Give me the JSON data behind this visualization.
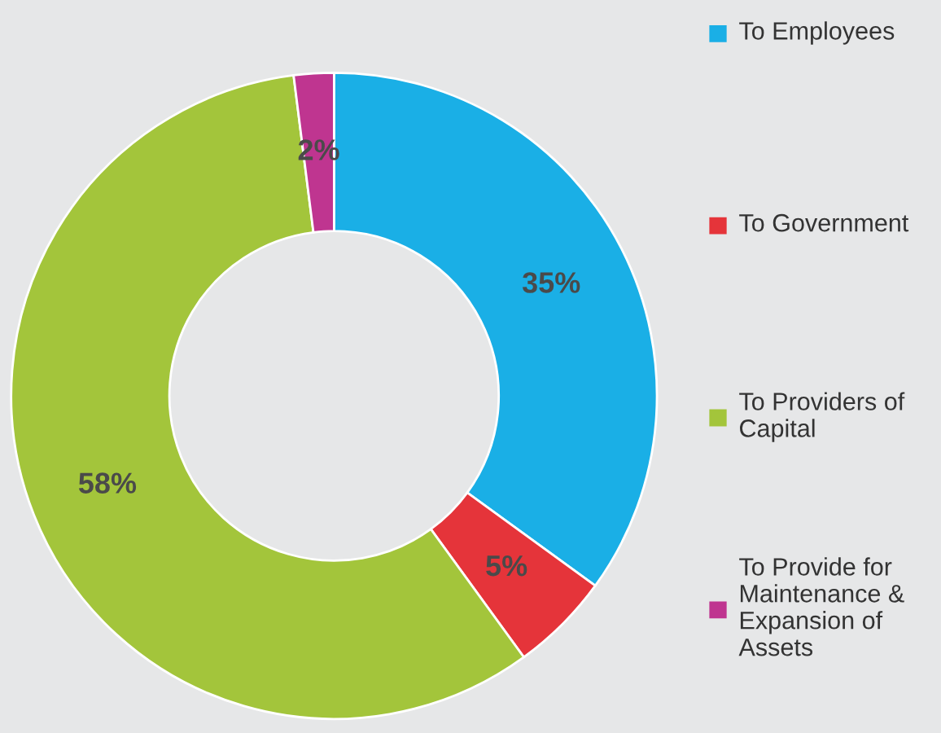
{
  "chart_data": {
    "type": "donut",
    "categories": [
      "To Employees",
      "To Government",
      "To Providers of Capital",
      "To Provide for Maintenance & Expansion of Assets"
    ],
    "values": [
      35,
      5,
      58,
      2
    ],
    "colors": [
      "#1aafe6",
      "#e5343a",
      "#a3c53b",
      "#bf3590"
    ],
    "value_labels": [
      "35%",
      "5%",
      "58%",
      "2%"
    ],
    "legend": "right"
  }
}
